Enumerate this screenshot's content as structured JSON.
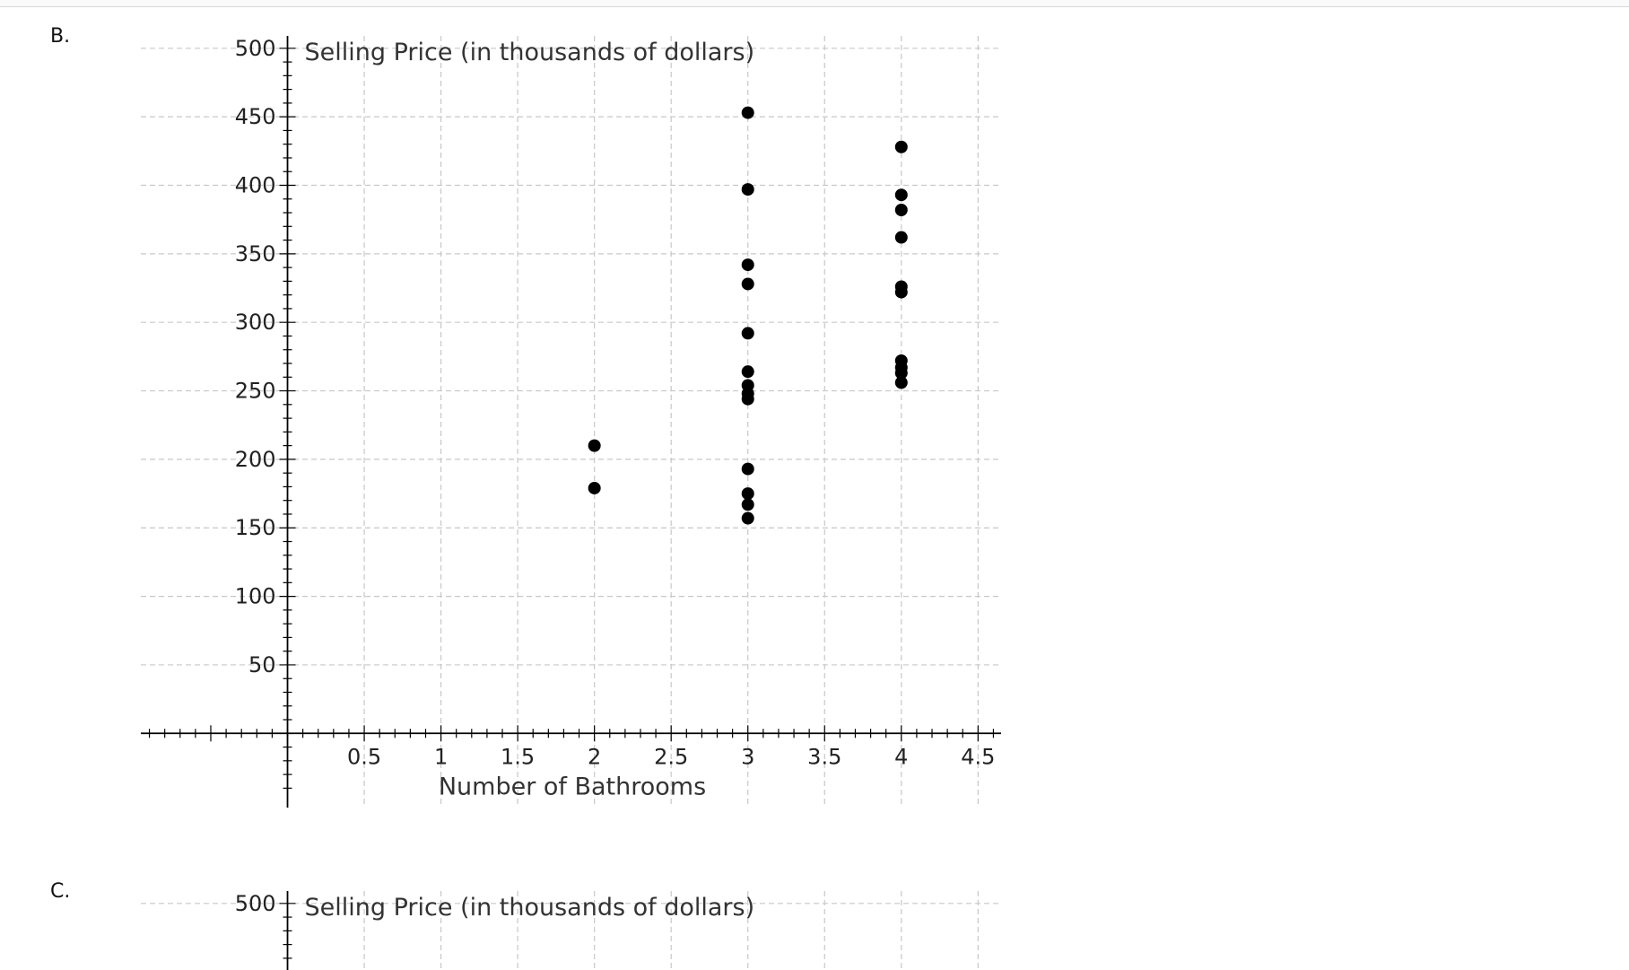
{
  "options": [
    {
      "label": "B."
    },
    {
      "label": "C."
    }
  ],
  "chart_data": [
    {
      "type": "scatter",
      "xlabel": "Number of Bathrooms",
      "ylabel": "Selling Price (in thousands of dollars)",
      "xlim": [
        -0.95,
        4.65
      ],
      "ylim": [
        -45,
        530
      ],
      "xticks": [
        0.5,
        1,
        1.5,
        2,
        2.5,
        3,
        3.5,
        4,
        4.5
      ],
      "xtick_labels": [
        "0.5",
        "1",
        "1.5",
        "2",
        "2.5",
        "3",
        "3.5",
        "4",
        "4.5"
      ],
      "yticks": [
        50,
        100,
        150,
        200,
        250,
        300,
        350,
        400,
        450,
        500
      ],
      "ytick_labels": [
        "50",
        "100",
        "150",
        "200",
        "250",
        "300",
        "350",
        "400",
        "450",
        "500"
      ],
      "grid": true,
      "x": [
        2,
        2,
        3,
        3,
        3,
        3,
        3,
        3,
        3,
        3,
        3,
        3,
        3,
        3,
        3,
        4,
        4,
        4,
        4,
        4,
        4,
        4,
        4,
        4,
        4
      ],
      "y": [
        210,
        179,
        397,
        342,
        328,
        292,
        264,
        254,
        248,
        244,
        193,
        175,
        167,
        157,
        453,
        428,
        393,
        382,
        362,
        326,
        322,
        272,
        267,
        263,
        256
      ]
    },
    {
      "type": "scatter",
      "xlabel": "",
      "ylabel": "Selling Price (in thousands of dollars)",
      "xlim": [
        -0.95,
        4.65
      ],
      "ylim": [
        -45,
        530
      ],
      "xticks": [
        0.5,
        1,
        1.5,
        2,
        2.5,
        3,
        3.5,
        4,
        4.5
      ],
      "xtick_labels": [],
      "yticks": [
        500
      ],
      "ytick_labels": [
        "500"
      ],
      "grid": true,
      "x": [],
      "y": []
    }
  ]
}
